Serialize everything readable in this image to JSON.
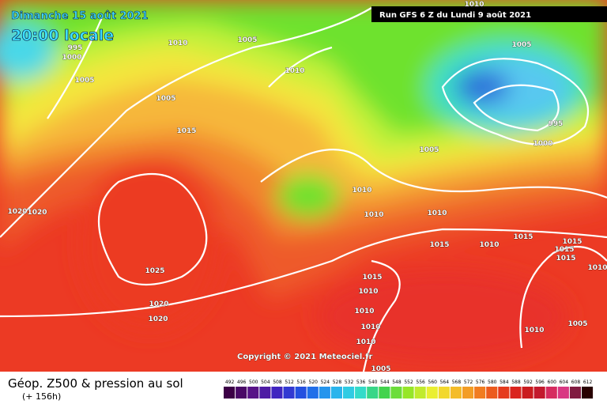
{
  "header": {
    "date": "Dimanche 15 août 2021",
    "time": "20:00 locale",
    "run": "Run GFS 6 Z du Lundi 9 août 2021"
  },
  "copyright": "Copyright © 2021 Meteociel.fr",
  "footer": {
    "title": "Géop. Z500 & pression au sol",
    "lead": "(+ 156h)"
  },
  "scale_labels": [
    492,
    496,
    500,
    504,
    508,
    512,
    516,
    520,
    524,
    528,
    532,
    536,
    540,
    544,
    548,
    552,
    556,
    560,
    564,
    568,
    572,
    576,
    580,
    584,
    588,
    592,
    596,
    600,
    604,
    608,
    612
  ],
  "isobar_labels": [
    1010,
    1005,
    1010,
    995,
    1000,
    1005,
    1010,
    1005,
    1005,
    1015,
    995,
    1000,
    1005,
    1010,
    1020,
    1020,
    1010,
    1010,
    1015,
    1010,
    1015,
    1015,
    1015,
    1015,
    1010,
    1025,
    1015,
    1010,
    1020,
    1010,
    1020,
    1010,
    1010,
    1005,
    1010,
    1005
  ]
}
